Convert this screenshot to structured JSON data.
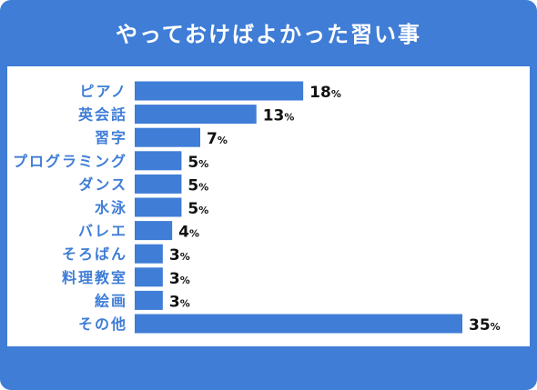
{
  "title": "やっておけばよかった習い事",
  "colors": {
    "background": "#3f7dd6",
    "bar": "#3f7dd6",
    "label_text": "#3f7dd6",
    "value_text": "#111111",
    "title_text": "#ffffff"
  },
  "chart_data": {
    "type": "bar",
    "orientation": "horizontal",
    "title": "やっておけばよかった習い事",
    "categories": [
      "ピアノ",
      "英会話",
      "習字",
      "プログラミング",
      "ダンス",
      "水泳",
      "バレエ",
      "そろばん",
      "料理教室",
      "絵画",
      "その他"
    ],
    "values": [
      18,
      13,
      7,
      5,
      5,
      5,
      4,
      3,
      3,
      3,
      35
    ],
    "value_suffix": "%",
    "xlim": [
      0,
      35
    ],
    "grid": false,
    "legend": "none"
  }
}
